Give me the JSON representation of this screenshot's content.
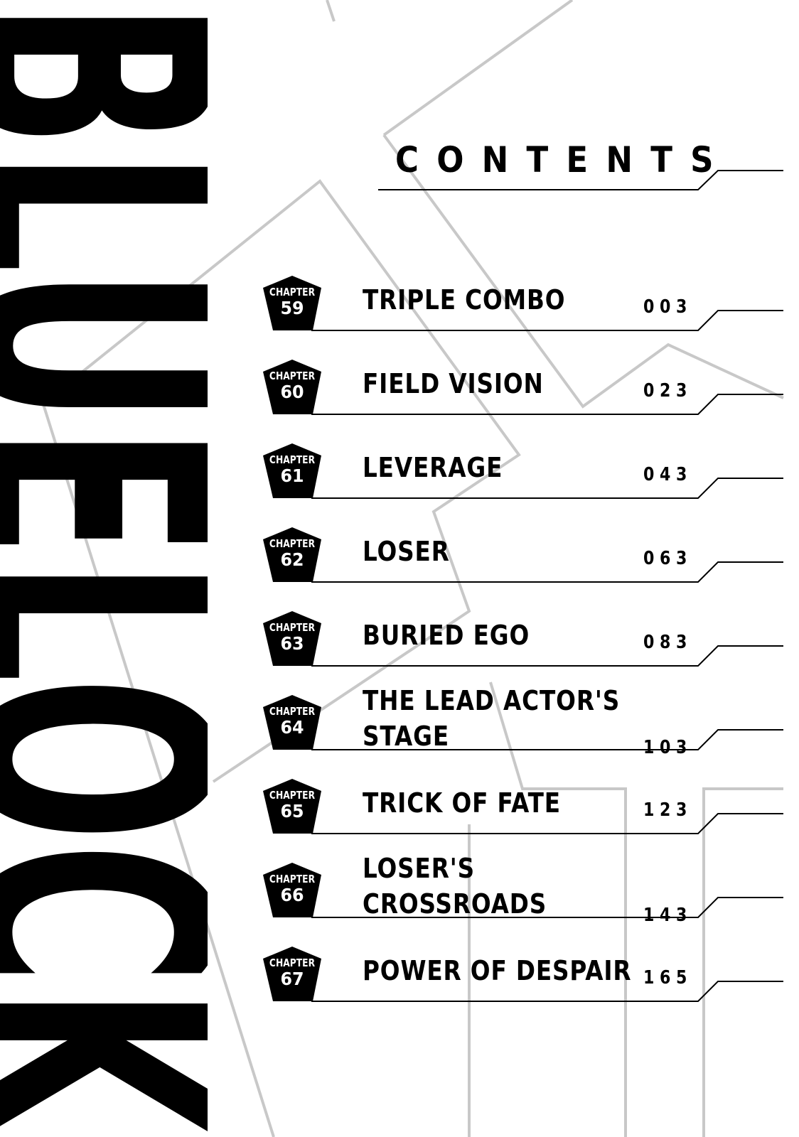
{
  "logo": {
    "text": "BLUELOCK"
  },
  "header": {
    "title": "CONTENTS"
  },
  "chapter_label": "CHAPTER",
  "chapters": [
    {
      "number": "59",
      "title_lines": [
        "TRIPLE COMBO"
      ],
      "page": "003"
    },
    {
      "number": "60",
      "title_lines": [
        "FIELD VISION"
      ],
      "page": "023"
    },
    {
      "number": "61",
      "title_lines": [
        "LEVERAGE"
      ],
      "page": "043"
    },
    {
      "number": "62",
      "title_lines": [
        "LOSER"
      ],
      "page": "063"
    },
    {
      "number": "63",
      "title_lines": [
        "BURIED EGO"
      ],
      "page": "083"
    },
    {
      "number": "64",
      "title_lines": [
        "THE LEAD ACTOR'S",
        "STAGE"
      ],
      "page": "103"
    },
    {
      "number": "65",
      "title_lines": [
        "TRICK OF FATE"
      ],
      "page": "123"
    },
    {
      "number": "66",
      "title_lines": [
        "LOSER'S",
        "CROSSROADS"
      ],
      "page": "143"
    },
    {
      "number": "67",
      "title_lines": [
        "POWER OF DESPAIR"
      ],
      "page": "165"
    }
  ],
  "colors": {
    "ink": "#000000",
    "background_lines": "#c8c8c8",
    "paper": "#ffffff"
  }
}
